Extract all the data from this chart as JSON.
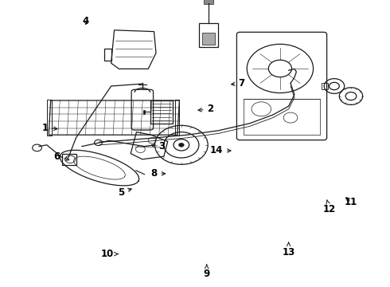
{
  "background": "#ffffff",
  "line_color": "#1a1a1a",
  "label_color": "#000000",
  "label_fontsize": 8.5,
  "label_positions": {
    "1": [
      0.115,
      0.555,
      0.155,
      0.55
    ],
    "2": [
      0.54,
      0.62,
      0.5,
      0.615
    ],
    "3": [
      0.415,
      0.49,
      0.38,
      0.495
    ],
    "4": [
      0.22,
      0.925,
      0.22,
      0.905
    ],
    "5": [
      0.31,
      0.33,
      0.345,
      0.345
    ],
    "6": [
      0.145,
      0.455,
      0.185,
      0.44
    ],
    "7": [
      0.62,
      0.71,
      0.585,
      0.705
    ],
    "8": [
      0.395,
      0.395,
      0.432,
      0.395
    ],
    "9": [
      0.53,
      0.045,
      0.53,
      0.08
    ],
    "10": [
      0.275,
      0.115,
      0.31,
      0.115
    ],
    "11": [
      0.9,
      0.295,
      0.882,
      0.32
    ],
    "12": [
      0.845,
      0.27,
      0.838,
      0.305
    ],
    "13": [
      0.74,
      0.12,
      0.74,
      0.158
    ],
    "14": [
      0.555,
      0.475,
      0.6,
      0.475
    ]
  }
}
